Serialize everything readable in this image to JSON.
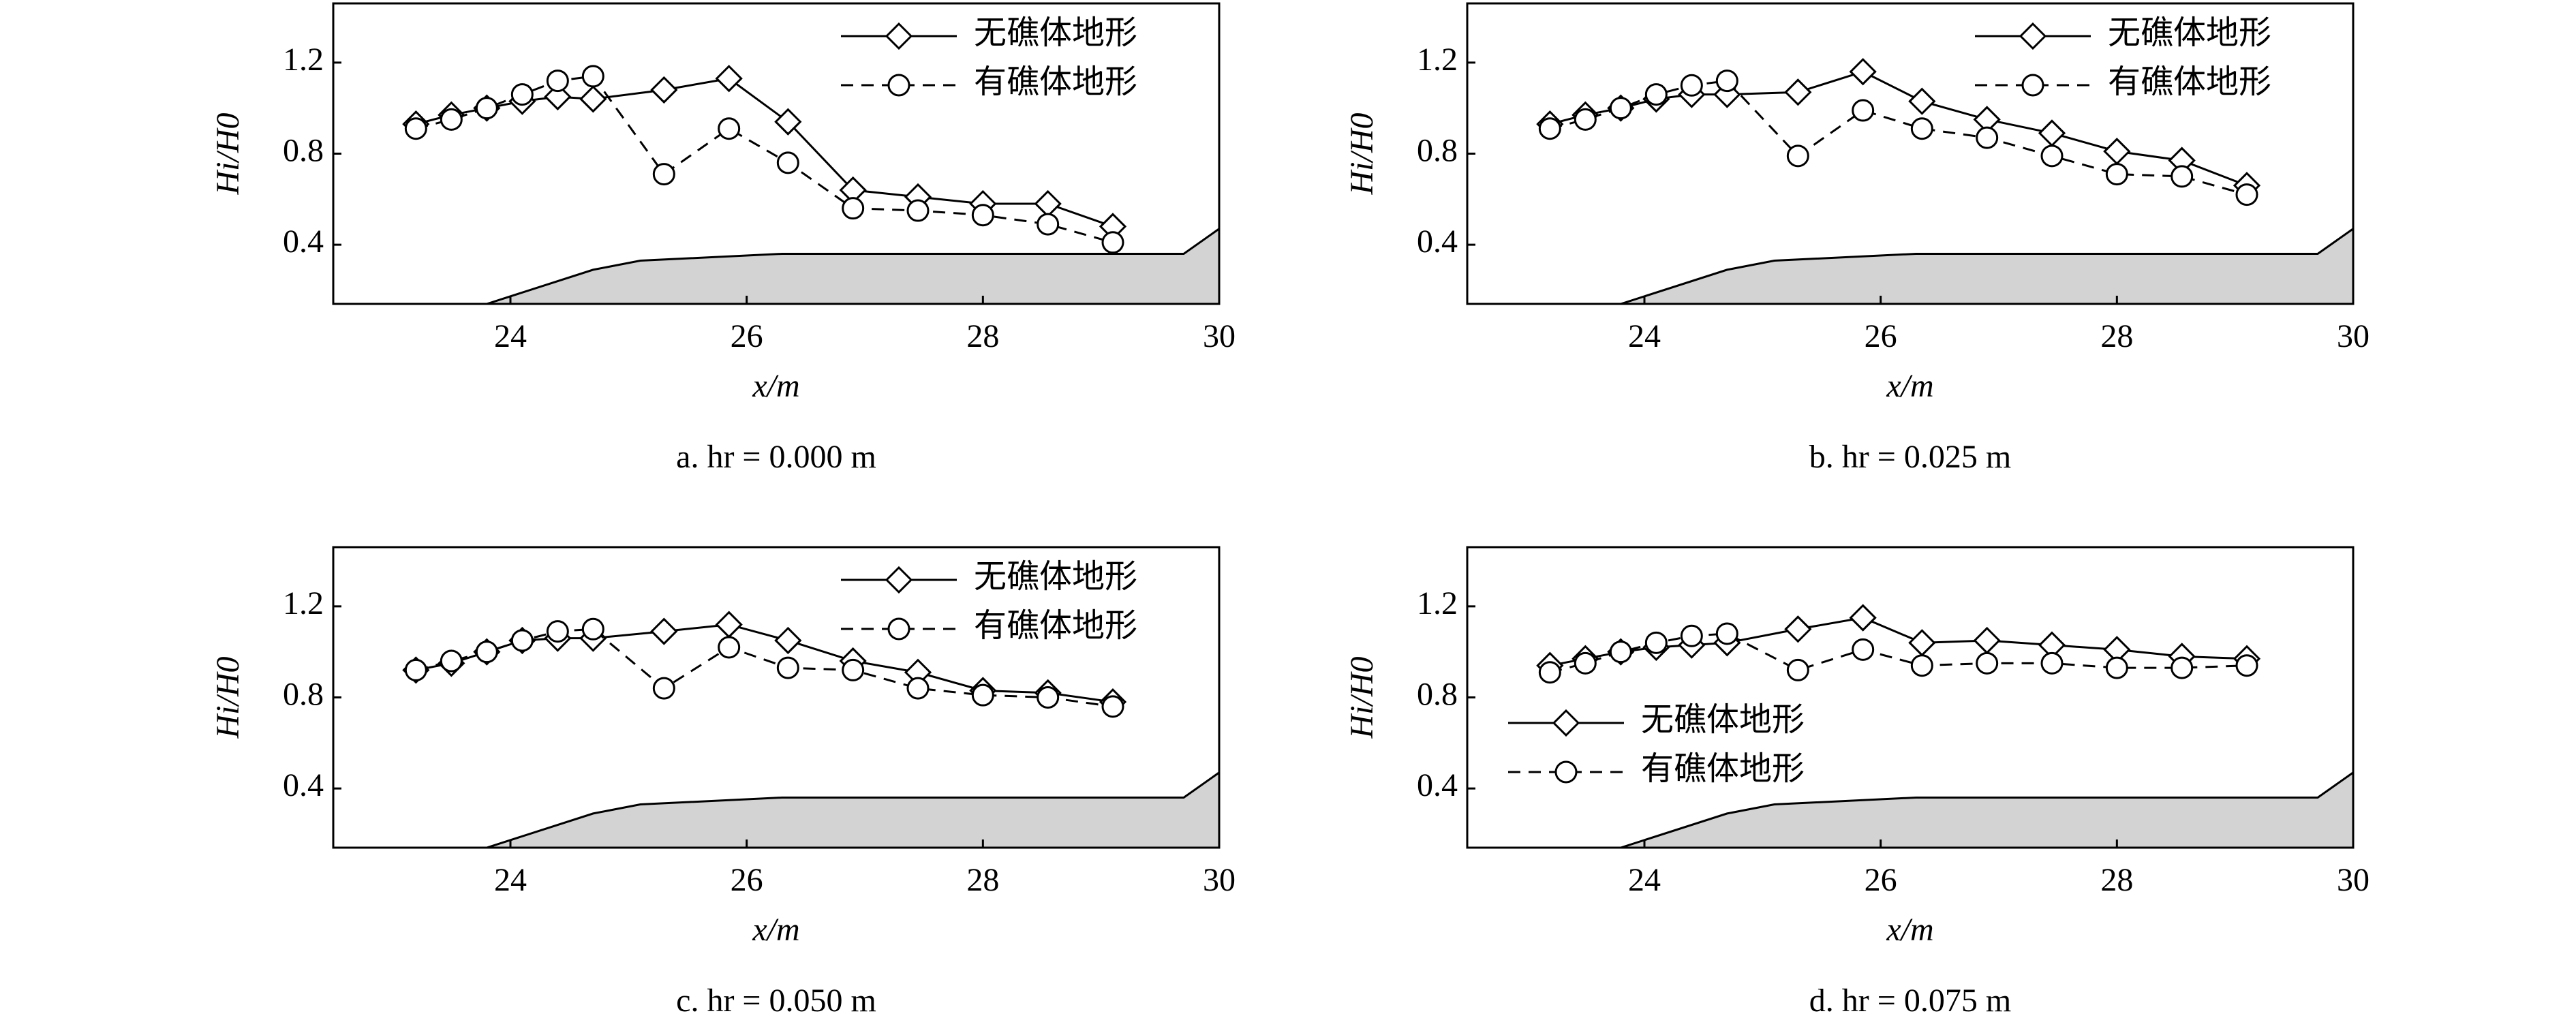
{
  "chart_data": [
    {
      "type": "line",
      "caption": "a. hr = 0.000 m",
      "xlabel": "x/m",
      "ylabel": "Hi/H0",
      "xlim": [
        22.5,
        30
      ],
      "xticks": [
        24,
        26,
        28,
        30
      ],
      "ylim": [
        0.14,
        1.46
      ],
      "yticks": [
        0.4,
        0.8,
        1.2
      ],
      "legend": "upper right",
      "x": [
        23.2,
        23.5,
        23.8,
        24.1,
        24.4,
        24.7,
        25.3,
        25.85,
        26.35,
        26.9,
        27.45,
        28.0,
        28.55,
        29.1
      ],
      "series": [
        {
          "name": "无礁体地形",
          "color": "#000000",
          "marker": "diamond",
          "dash": false,
          "values": [
            0.93,
            0.97,
            1.0,
            1.03,
            1.05,
            1.04,
            1.08,
            1.13,
            0.94,
            0.64,
            0.61,
            0.58,
            0.58,
            0.48
          ]
        },
        {
          "name": "有礁体地形",
          "color": "#000000",
          "marker": "circle",
          "dash": true,
          "values": [
            0.91,
            0.95,
            1.0,
            1.06,
            1.12,
            1.14,
            0.71,
            0.91,
            0.76,
            0.56,
            0.55,
            0.53,
            0.49,
            0.41
          ]
        }
      ],
      "terrain_x": [
        23.8,
        24.7,
        25.1,
        26.3,
        29.7,
        30
      ],
      "terrain_y": [
        0.14,
        0.29,
        0.33,
        0.36,
        0.36,
        0.47
      ],
      "terrain_color": "#d3d3d3"
    },
    {
      "type": "line",
      "caption": "b. hr = 0.025 m",
      "xlabel": "x/m",
      "ylabel": "Hi/H0",
      "xlim": [
        22.5,
        30
      ],
      "xticks": [
        24,
        26,
        28,
        30
      ],
      "ylim": [
        0.14,
        1.46
      ],
      "yticks": [
        0.4,
        0.8,
        1.2
      ],
      "legend": "upper right",
      "x": [
        23.2,
        23.5,
        23.8,
        24.1,
        24.4,
        24.7,
        25.3,
        25.85,
        26.35,
        26.9,
        27.45,
        28.0,
        28.55,
        29.1
      ],
      "series": [
        {
          "name": "无礁体地形",
          "color": "#000000",
          "marker": "diamond",
          "dash": false,
          "values": [
            0.93,
            0.97,
            1.0,
            1.04,
            1.06,
            1.06,
            1.07,
            1.16,
            1.03,
            0.95,
            0.89,
            0.81,
            0.77,
            0.66
          ]
        },
        {
          "name": "有礁体地形",
          "color": "#000000",
          "marker": "circle",
          "dash": true,
          "values": [
            0.91,
            0.95,
            1.0,
            1.06,
            1.1,
            1.12,
            0.79,
            0.99,
            0.91,
            0.87,
            0.79,
            0.71,
            0.7,
            0.62
          ]
        }
      ],
      "terrain_x": [
        23.8,
        24.7,
        25.1,
        26.3,
        29.7,
        30
      ],
      "terrain_y": [
        0.14,
        0.29,
        0.33,
        0.36,
        0.36,
        0.47
      ],
      "terrain_color": "#d3d3d3"
    },
    {
      "type": "line",
      "caption": "c. hr = 0.050 m",
      "xlabel": "x/m",
      "ylabel": "Hi/H0",
      "xlim": [
        22.5,
        30
      ],
      "xticks": [
        24,
        26,
        28,
        30
      ],
      "ylim": [
        0.14,
        1.46
      ],
      "yticks": [
        0.4,
        0.8,
        1.2
      ],
      "legend": "upper right",
      "x": [
        23.2,
        23.5,
        23.8,
        24.1,
        24.4,
        24.7,
        25.3,
        25.85,
        26.35,
        26.9,
        27.45,
        28.0,
        28.55,
        29.1
      ],
      "series": [
        {
          "name": "无礁体地形",
          "color": "#000000",
          "marker": "diamond",
          "dash": false,
          "values": [
            0.92,
            0.95,
            1.0,
            1.05,
            1.06,
            1.06,
            1.09,
            1.12,
            1.05,
            0.96,
            0.91,
            0.83,
            0.82,
            0.78
          ]
        },
        {
          "name": "有礁体地形",
          "color": "#000000",
          "marker": "circle",
          "dash": true,
          "values": [
            0.92,
            0.96,
            1.0,
            1.05,
            1.09,
            1.1,
            0.84,
            1.02,
            0.93,
            0.92,
            0.84,
            0.81,
            0.8,
            0.76
          ]
        }
      ],
      "terrain_x": [
        23.8,
        24.7,
        25.1,
        26.3,
        29.7,
        30
      ],
      "terrain_y": [
        0.14,
        0.29,
        0.33,
        0.36,
        0.36,
        0.47
      ],
      "terrain_color": "#d3d3d3"
    },
    {
      "type": "line",
      "caption": "d. hr = 0.075 m",
      "xlabel": "x/m",
      "ylabel": "Hi/H0",
      "xlim": [
        22.5,
        30
      ],
      "xticks": [
        24,
        26,
        28,
        30
      ],
      "ylim": [
        0.14,
        1.46
      ],
      "yticks": [
        0.4,
        0.8,
        1.2
      ],
      "legend": "center left",
      "x": [
        23.2,
        23.5,
        23.8,
        24.1,
        24.4,
        24.7,
        25.3,
        25.85,
        26.35,
        26.9,
        27.45,
        28.0,
        28.55,
        29.1
      ],
      "series": [
        {
          "name": "无礁体地形",
          "color": "#000000",
          "marker": "diamond",
          "dash": false,
          "values": [
            0.94,
            0.97,
            1.0,
            1.02,
            1.03,
            1.04,
            1.1,
            1.15,
            1.04,
            1.05,
            1.03,
            1.01,
            0.98,
            0.97
          ]
        },
        {
          "name": "有礁体地形",
          "color": "#000000",
          "marker": "circle",
          "dash": true,
          "values": [
            0.91,
            0.95,
            1.0,
            1.04,
            1.07,
            1.08,
            0.92,
            1.01,
            0.94,
            0.95,
            0.95,
            0.93,
            0.93,
            0.94
          ]
        }
      ],
      "terrain_x": [
        23.8,
        24.7,
        25.1,
        26.3,
        29.7,
        30
      ],
      "terrain_y": [
        0.14,
        0.29,
        0.33,
        0.36,
        0.36,
        0.47
      ],
      "terrain_color": "#d3d3d3"
    }
  ]
}
